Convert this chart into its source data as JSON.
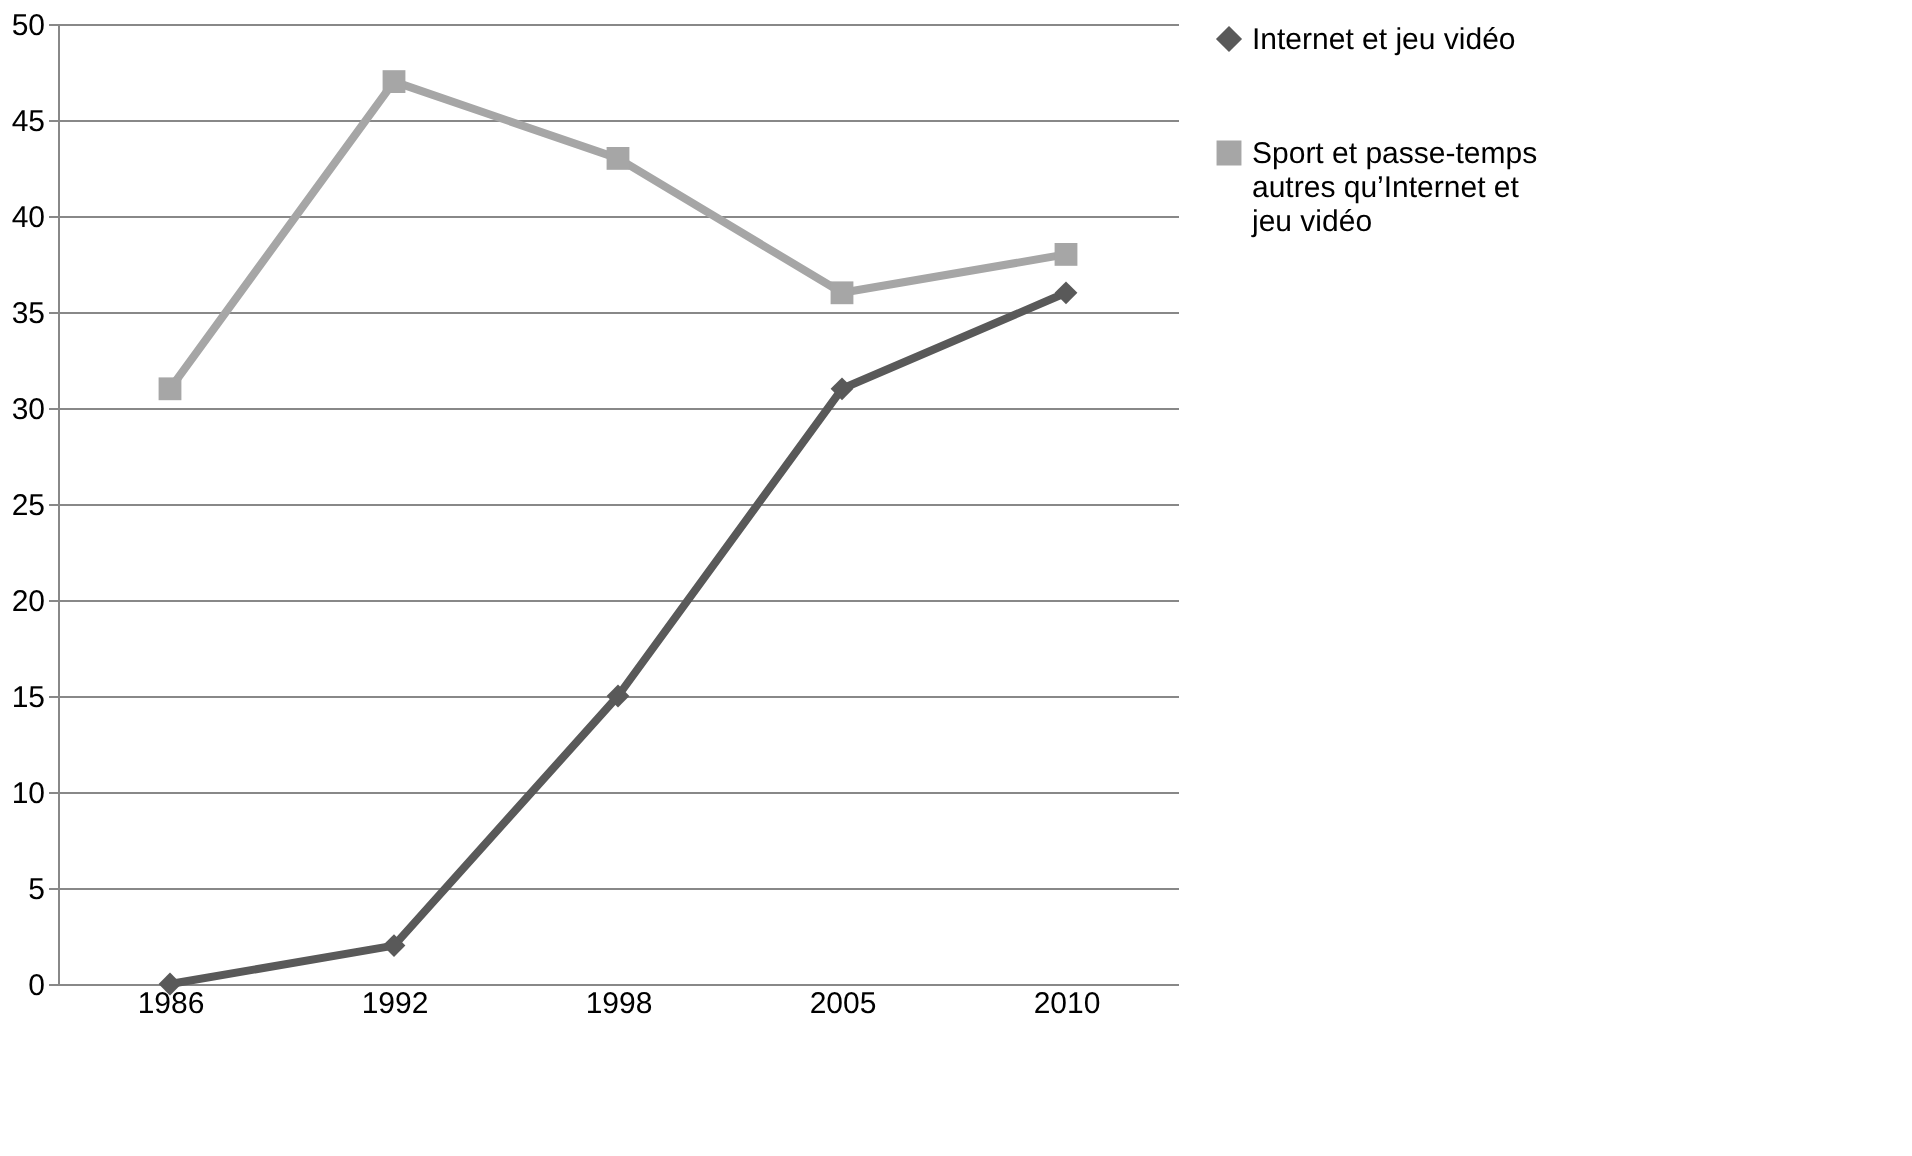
{
  "chart_data": {
    "type": "line",
    "categories": [
      "1986",
      "1992",
      "1998",
      "2005",
      "2010"
    ],
    "series": [
      {
        "name": "Internet et jeu vidéo",
        "color": "#595959",
        "marker": "diamond",
        "values": [
          0,
          2,
          15,
          31,
          36
        ]
      },
      {
        "name": "Sport et passe-temps autres qu’Internet et jeu vidéo",
        "color": "#a6a6a6",
        "marker": "square",
        "values": [
          31,
          47,
          43,
          36,
          38
        ]
      }
    ],
    "ylim": [
      0,
      50
    ],
    "yticks": [
      0,
      5,
      10,
      15,
      20,
      25,
      30,
      35,
      40,
      45,
      50
    ],
    "grid": "y",
    "legend": "right"
  }
}
